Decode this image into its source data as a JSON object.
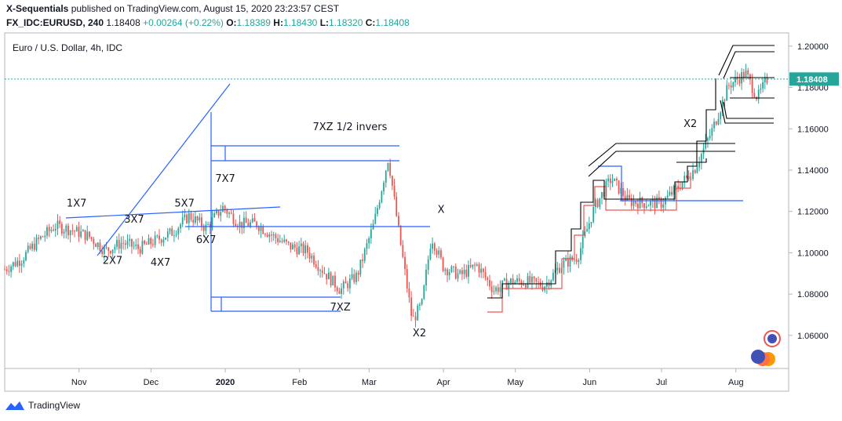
{
  "header": {
    "publisher": "X-Sequentials",
    "published_text": "published on TradingView.com, August 15, 2020 23:23:57 CEST",
    "symbol": "FX_IDC:EURUSD, 240",
    "last": "1.18408",
    "change": "+0.00264 (+0.22%)",
    "o_label": "O:",
    "o_val": "1.18389",
    "h_label": "H:",
    "h_val": "1.18430",
    "l_label": "L:",
    "l_val": "1.18320",
    "c_label": "C:",
    "c_val": "1.18408"
  },
  "footer": {
    "brand": "TradingView"
  },
  "colors": {
    "up": "#26a69a",
    "down": "#ef5350",
    "trend": "#2962ff",
    "last": "#26a69a"
  },
  "chart_data": {
    "type": "candlestick",
    "title": "Euro / U.S. Dollar, 4h, IDC",
    "ylim": [
      1.044,
      1.2064
    ],
    "yticks": [
      "1.20000",
      "1.18000",
      "1.16000",
      "1.14000",
      "1.12000",
      "1.10000",
      "1.08000",
      "1.06000"
    ],
    "ytick_values": [
      1.2,
      1.18,
      1.16,
      1.14,
      1.12,
      1.1,
      1.08,
      1.06
    ],
    "xticks": [
      "Nov",
      "Dec",
      "2020",
      "Feb",
      "Mar",
      "Apr",
      "May",
      "Jun",
      "Jul",
      "Aug"
    ],
    "last_price": 1.18408,
    "last_price_label": "1.18408",
    "close_path": [
      {
        "x": "2019-10-01",
        "y": 1.092
      },
      {
        "x": "2019-10-08",
        "y": 1.097
      },
      {
        "x": "2019-10-15",
        "y": 1.106
      },
      {
        "x": "2019-10-22",
        "y": 1.113
      },
      {
        "x": "2019-10-29",
        "y": 1.111
      },
      {
        "x": "2019-11-05",
        "y": 1.108
      },
      {
        "x": "2019-11-12",
        "y": 1.101
      },
      {
        "x": "2019-11-19",
        "y": 1.105
      },
      {
        "x": "2019-11-26",
        "y": 1.102
      },
      {
        "x": "2019-12-03",
        "y": 1.106
      },
      {
        "x": "2019-12-10",
        "y": 1.11
      },
      {
        "x": "2019-12-17",
        "y": 1.118
      },
      {
        "x": "2019-12-24",
        "y": 1.112
      },
      {
        "x": "2019-12-31",
        "y": 1.122
      },
      {
        "x": "2020-01-07",
        "y": 1.114
      },
      {
        "x": "2020-01-14",
        "y": 1.114
      },
      {
        "x": "2020-01-21",
        "y": 1.108
      },
      {
        "x": "2020-01-28",
        "y": 1.103
      },
      {
        "x": "2020-02-04",
        "y": 1.101
      },
      {
        "x": "2020-02-11",
        "y": 1.091
      },
      {
        "x": "2020-02-18",
        "y": 1.082
      },
      {
        "x": "2020-02-25",
        "y": 1.089
      },
      {
        "x": "2020-03-03",
        "y": 1.114
      },
      {
        "x": "2020-03-09",
        "y": 1.146
      },
      {
        "x": "2020-03-13",
        "y": 1.113
      },
      {
        "x": "2020-03-19",
        "y": 1.067
      },
      {
        "x": "2020-03-23",
        "y": 1.075
      },
      {
        "x": "2020-03-27",
        "y": 1.108
      },
      {
        "x": "2020-04-01",
        "y": 1.093
      },
      {
        "x": "2020-04-08",
        "y": 1.089
      },
      {
        "x": "2020-04-15",
        "y": 1.094
      },
      {
        "x": "2020-04-22",
        "y": 1.082
      },
      {
        "x": "2020-04-29",
        "y": 1.086
      },
      {
        "x": "2020-05-06",
        "y": 1.086
      },
      {
        "x": "2020-05-13",
        "y": 1.084
      },
      {
        "x": "2020-05-20",
        "y": 1.094
      },
      {
        "x": "2020-05-27",
        "y": 1.098
      },
      {
        "x": "2020-06-03",
        "y": 1.122
      },
      {
        "x": "2020-06-10",
        "y": 1.136
      },
      {
        "x": "2020-06-17",
        "y": 1.125
      },
      {
        "x": "2020-06-24",
        "y": 1.124
      },
      {
        "x": "2020-07-01",
        "y": 1.124
      },
      {
        "x": "2020-07-08",
        "y": 1.132
      },
      {
        "x": "2020-07-15",
        "y": 1.141
      },
      {
        "x": "2020-07-22",
        "y": 1.159
      },
      {
        "x": "2020-07-29",
        "y": 1.181
      },
      {
        "x": "2020-08-05",
        "y": 1.187
      },
      {
        "x": "2020-08-10",
        "y": 1.175
      },
      {
        "x": "2020-08-14",
        "y": 1.184
      }
    ],
    "annotations": [
      {
        "text": "1X7",
        "x": "2019-10-31",
        "y": 1.1223
      },
      {
        "text": "2X7",
        "x": "2019-11-15",
        "y": 1.0947
      },
      {
        "text": "3X7",
        "x": "2019-11-24",
        "y": 1.1146
      },
      {
        "text": "4X7",
        "x": "2019-12-05",
        "y": 1.0937
      },
      {
        "text": "5X7",
        "x": "2019-12-15",
        "y": 1.1223
      },
      {
        "text": "6X7",
        "x": "2019-12-24",
        "y": 1.1047
      },
      {
        "text": "7X7",
        "x": "2020-01-01",
        "y": 1.1344
      },
      {
        "text": "7XZ 1/2 invers",
        "x": "2020-02-22",
        "y": 1.1593
      },
      {
        "text": "X",
        "x": "2020-03-31",
        "y": 1.1193
      },
      {
        "text": "7XZ",
        "x": "2020-02-18",
        "y": 1.0721
      },
      {
        "text": "X2",
        "x": "2020-03-22",
        "y": 1.0596
      },
      {
        "text": "X2",
        "x": "2020-07-13",
        "y": 1.1608
      }
    ]
  }
}
